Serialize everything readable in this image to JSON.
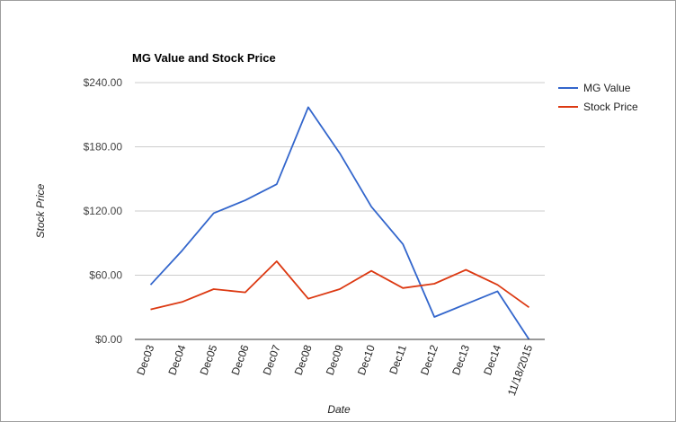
{
  "chart_data": {
    "type": "line",
    "title": "MG Value and Stock Price",
    "xlabel": "Date",
    "ylabel": "Stock Price",
    "categories": [
      "Dec03",
      "Dec04",
      "Dec05",
      "Dec06",
      "Dec07",
      "Dec08",
      "Dec09",
      "Dec10",
      "Dec11",
      "Dec12",
      "Dec13",
      "Dec14",
      "11/18/2015"
    ],
    "y_ticks": [
      "$0.00",
      "$60.00",
      "$120.00",
      "$180.00",
      "$240.00"
    ],
    "ylim": [
      0,
      240
    ],
    "grid": true,
    "legend_position": "right",
    "series": [
      {
        "name": "MG Value",
        "color": "#3366cc",
        "values": [
          51,
          83,
          118,
          130,
          145,
          217,
          174,
          124,
          89,
          21,
          33,
          45,
          0
        ]
      },
      {
        "name": "Stock Price",
        "color": "#dc3912",
        "values": [
          28,
          35,
          47,
          44,
          73,
          38,
          47,
          64,
          48,
          52,
          65,
          51,
          30
        ]
      }
    ]
  }
}
